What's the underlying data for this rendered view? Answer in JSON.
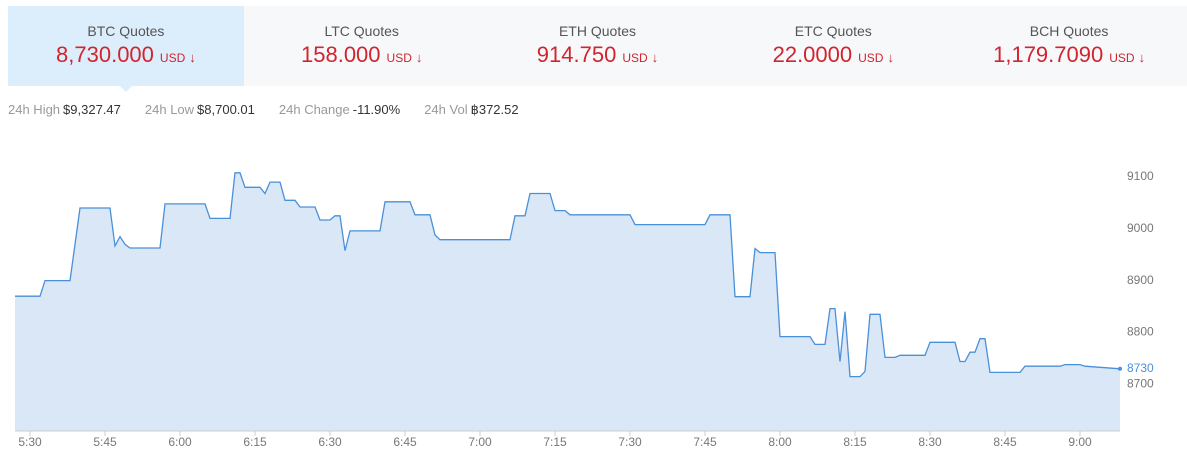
{
  "tabs": [
    {
      "label": "BTC Quotes",
      "price": "8,730.000",
      "unit": "USD"
    },
    {
      "label": "LTC Quotes",
      "price": "158.000",
      "unit": "USD"
    },
    {
      "label": "ETH Quotes",
      "price": "914.750",
      "unit": "USD"
    },
    {
      "label": "ETC Quotes",
      "price": "22.0000",
      "unit": "USD"
    },
    {
      "label": "BCH Quotes",
      "price": "1,179.7090",
      "unit": "USD"
    }
  ],
  "stats": [
    {
      "label": "24h High",
      "value": "$9,327.47"
    },
    {
      "label": "24h Low",
      "value": "$8,700.01"
    },
    {
      "label": "24h Change",
      "value": "-11.90%"
    },
    {
      "label": "24h Vol",
      "value": "฿372.52"
    }
  ],
  "chart_data": {
    "type": "area",
    "color": "#4a90d9",
    "fill": "#dae7f7",
    "x": [
      "5:27",
      "5:32",
      "5:33",
      "5:38",
      "5:40",
      "5:46",
      "5:47",
      "5:48",
      "5:49",
      "5:50",
      "5:56",
      "5:57",
      "6:05",
      "6:06",
      "6:10",
      "6:11",
      "6:12",
      "6:13",
      "6:16",
      "6:17",
      "6:18",
      "6:20",
      "6:21",
      "6:23",
      "6:24",
      "6:27",
      "6:28",
      "6:30",
      "6:31",
      "6:32",
      "6:33",
      "6:34",
      "6:40",
      "6:41",
      "6:46",
      "6:47",
      "6:50",
      "6:51",
      "6:52",
      "7:06",
      "7:07",
      "7:09",
      "7:10",
      "7:14",
      "7:15",
      "7:17",
      "7:18",
      "7:30",
      "7:31",
      "7:45",
      "7:46",
      "7:50",
      "7:51",
      "7:54",
      "7:55",
      "7:56",
      "7:59",
      "8:00",
      "8:06",
      "8:07",
      "8:09",
      "8:10",
      "8:11",
      "8:12",
      "8:13",
      "8:14",
      "8:16",
      "8:17",
      "8:18",
      "8:20",
      "8:21",
      "8:23",
      "8:24",
      "8:29",
      "8:30",
      "8:35",
      "8:36",
      "8:37",
      "8:38",
      "8:39",
      "8:40",
      "8:41",
      "8:42",
      "8:48",
      "8:49",
      "8:56",
      "8:57",
      "9:00",
      "9:01",
      "9:08"
    ],
    "values": [
      8870,
      8870,
      8900,
      8900,
      9040,
      9040,
      8967,
      8985,
      8970,
      8963,
      8963,
      9048,
      9048,
      9020,
      9020,
      9108,
      9108,
      9080,
      9080,
      9068,
      9090,
      9090,
      9055,
      9055,
      9042,
      9042,
      9017,
      9017,
      9025,
      9025,
      8958,
      8996,
      8996,
      9052,
      9052,
      9027,
      9027,
      8988,
      8979,
      8979,
      9025,
      9025,
      9068,
      9068,
      9035,
      9035,
      9027,
      9027,
      9008,
      9008,
      9027,
      9027,
      8869,
      8869,
      8962,
      8954,
      8954,
      8792,
      8792,
      8777,
      8777,
      8846,
      8846,
      8744,
      8840,
      8715,
      8715,
      8725,
      8835,
      8835,
      8752,
      8752,
      8756,
      8756,
      8781,
      8781,
      8744,
      8744,
      8762,
      8762,
      8788,
      8788,
      8723,
      8723,
      8735,
      8735,
      8738,
      8738,
      8735,
      8730
    ],
    "xlim": [
      "5:27",
      "9:08"
    ],
    "xticks": [
      "5:30",
      "5:45",
      "6:00",
      "6:15",
      "6:30",
      "6:45",
      "7:00",
      "7:15",
      "7:30",
      "7:45",
      "8:00",
      "8:15",
      "8:30",
      "8:45",
      "9:00"
    ],
    "ylim": [
      8610,
      9150
    ],
    "yticks": [
      8700,
      8800,
      8900,
      9000,
      9100
    ]
  }
}
